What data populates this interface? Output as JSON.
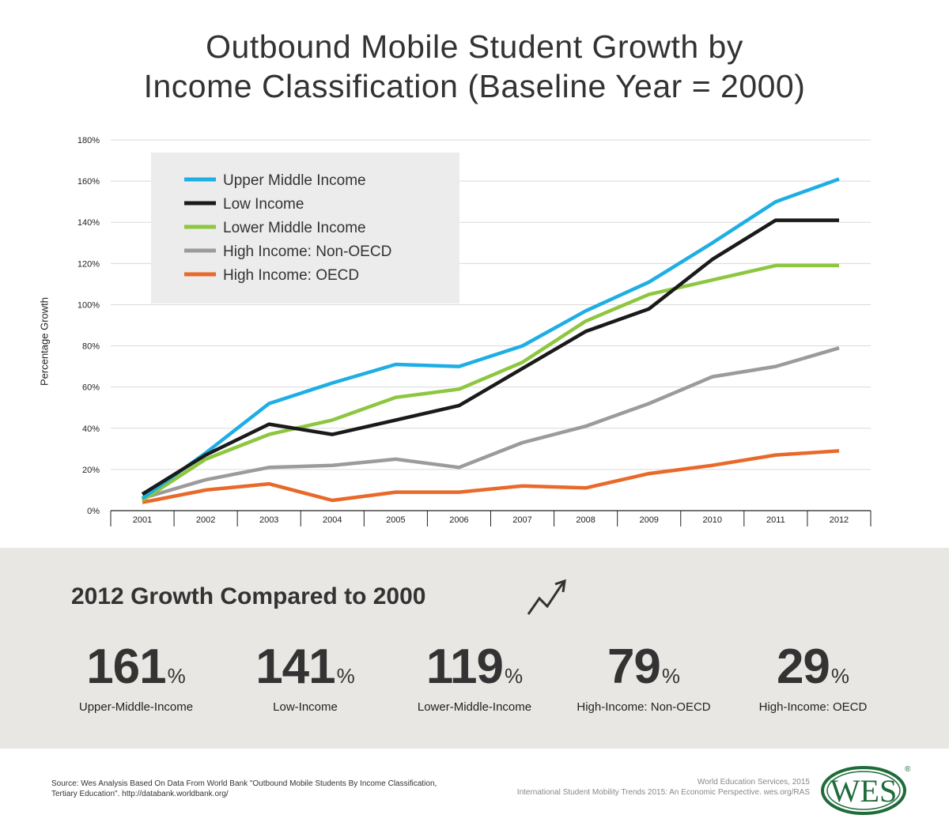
{
  "title_line1": "Outbound Mobile Student Growth by",
  "title_line2": "Income Classification (Baseline Year = 2000)",
  "chart_data": {
    "type": "line",
    "ylabel": "Percentage Growth",
    "x": [
      "2001",
      "2002",
      "2003",
      "2004",
      "2005",
      "2006",
      "2007",
      "2008",
      "2009",
      "2010",
      "2011",
      "2012"
    ],
    "yticks": [
      "0%",
      "20%",
      "40%",
      "60%",
      "80%",
      "100%",
      "120%",
      "140%",
      "160%",
      "180%"
    ],
    "ylim": [
      0,
      180
    ],
    "grid": true,
    "legend_placement": "top-left",
    "series": [
      {
        "name": "Upper Middle Income",
        "color": "#1eaee4",
        "values": [
          6,
          28,
          52,
          62,
          71,
          70,
          80,
          97,
          111,
          130,
          150,
          161
        ]
      },
      {
        "name": "Low Income",
        "color": "#1a1a1a",
        "values": [
          8,
          27,
          42,
          37,
          44,
          51,
          69,
          87,
          98,
          122,
          141,
          141
        ]
      },
      {
        "name": "Lower Middle Income",
        "color": "#8dc63f",
        "values": [
          5,
          25,
          37,
          44,
          55,
          59,
          72,
          92,
          105,
          112,
          119,
          119
        ]
      },
      {
        "name": "High Income: Non-OECD",
        "color": "#9b9b9b",
        "values": [
          6,
          15,
          21,
          22,
          25,
          21,
          33,
          41,
          52,
          65,
          70,
          79
        ]
      },
      {
        "name": "High Income: OECD",
        "color": "#e8692a",
        "values": [
          4,
          10,
          13,
          5,
          9,
          9,
          12,
          11,
          18,
          22,
          27,
          29
        ]
      }
    ]
  },
  "stats_title": "2012 Growth Compared to 2000",
  "stats": [
    {
      "value": "161",
      "unit": "%",
      "label": "Upper-Middle-Income"
    },
    {
      "value": "141",
      "unit": "%",
      "label": "Low-Income"
    },
    {
      "value": "119",
      "unit": "%",
      "label": "Lower-Middle-Income"
    },
    {
      "value": "79",
      "unit": "%",
      "label": "High-Income: Non-OECD"
    },
    {
      "value": "29",
      "unit": "%",
      "label": "High-Income: OECD"
    }
  ],
  "source_text": "Source: Wes Analysis Based On Data From World Bank \"Outbound Mobile Students By Income Classification, Tertiary Education\". http://databank.worldbank.org/",
  "credit_line1": "World Education Services, 2015",
  "credit_line2": "International Student Mobility Trends 2015: An Economic Perspective. wes.org/RAS",
  "logo_text": "WES",
  "logo_mark": "®",
  "icons": {
    "trend": "trend-up-icon"
  }
}
